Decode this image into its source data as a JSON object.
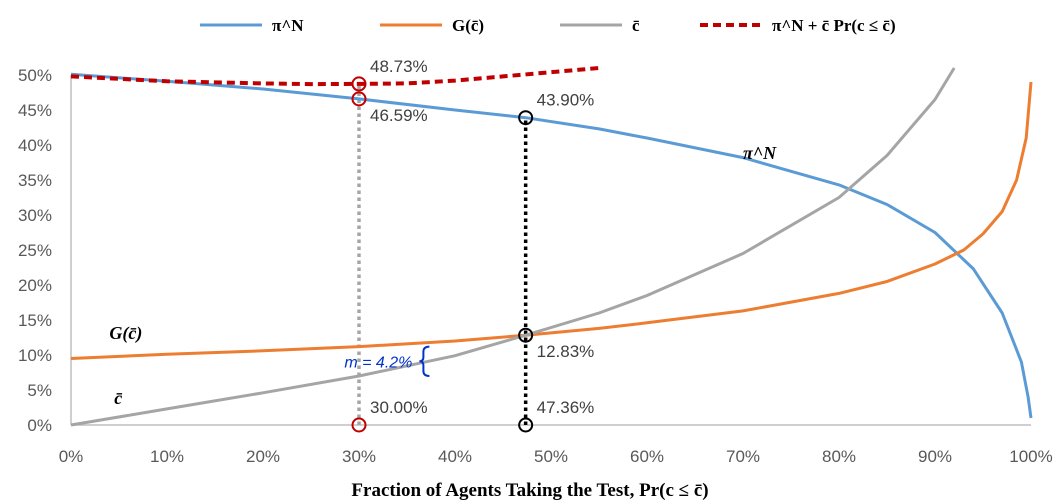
{
  "chart_data": {
    "type": "line",
    "title": "",
    "xlabel": "Fraction of Agents Taking the Test, Pr(c ≤ c̄)",
    "ylabel": "",
    "xlim": [
      0,
      100
    ],
    "ylim": [
      0,
      50
    ],
    "x_ticks": [
      "0%",
      "10%",
      "20%",
      "30%",
      "40%",
      "50%",
      "60%",
      "70%",
      "80%",
      "90%",
      "100%"
    ],
    "y_ticks": [
      "0%",
      "5%",
      "10%",
      "15%",
      "20%",
      "25%",
      "30%",
      "35%",
      "40%",
      "45%",
      "50%"
    ],
    "legend_position": "top",
    "legend": [
      {
        "label": "π^N",
        "color": "#5b9bd5",
        "style": "solid"
      },
      {
        "label": "G(c̄)",
        "color": "#ed7d31",
        "style": "solid"
      },
      {
        "label": "c̄",
        "color": "#a5a5a5",
        "style": "solid"
      },
      {
        "label": "π^N + c̄ Pr(c ≤ c̄)",
        "color": "#c00000",
        "style": "dashed"
      }
    ],
    "series": [
      {
        "name": "π^N",
        "color": "#5b9bd5",
        "style": "solid",
        "x": [
          0,
          10,
          20,
          30,
          40,
          47.36,
          55,
          60,
          70,
          80,
          85,
          90,
          94,
          97,
          99,
          99.7,
          100
        ],
        "y": [
          50.1,
          49.1,
          48.0,
          46.59,
          45.0,
          43.9,
          42.3,
          41.0,
          38.2,
          34.3,
          31.5,
          27.5,
          22.3,
          16.0,
          9.0,
          4.0,
          1.0
        ]
      },
      {
        "name": "G(c̄)",
        "color": "#ed7d31",
        "style": "solid",
        "x": [
          0,
          10,
          20,
          30,
          40,
          47.36,
          55,
          60,
          70,
          80,
          85,
          90,
          93,
          95,
          97,
          98.5,
          99.5,
          100
        ],
        "y": [
          9.5,
          10.1,
          10.6,
          11.2,
          12.0,
          12.83,
          13.8,
          14.6,
          16.3,
          18.8,
          20.5,
          23.0,
          25.0,
          27.3,
          30.5,
          35.0,
          41.0,
          49.0
        ]
      },
      {
        "name": "c̄",
        "color": "#a5a5a5",
        "style": "solid",
        "x": [
          0,
          10,
          20,
          30,
          40,
          47.36,
          55,
          60,
          70,
          80,
          85,
          90,
          92
        ],
        "y": [
          0,
          2.3,
          4.6,
          7.0,
          9.9,
          12.83,
          16.0,
          18.5,
          24.5,
          32.5,
          38.5,
          46.5,
          51.0
        ]
      },
      {
        "name": "π^N + c̄ Pr(c ≤ c̄)",
        "color": "#c00000",
        "style": "dashed",
        "x": [
          0,
          10,
          20,
          25,
          30,
          35,
          40,
          45,
          50,
          55
        ],
        "y": [
          49.8,
          49.1,
          48.8,
          48.7,
          48.73,
          48.8,
          49.2,
          49.8,
          50.4,
          51.0
        ]
      }
    ],
    "vertical_guides": [
      {
        "x": 30,
        "y_top": 48.73,
        "color": "#a5a5a5"
      },
      {
        "x": 47.36,
        "y_top": 43.9,
        "color": "#000000"
      }
    ],
    "markers": [
      {
        "x": 30,
        "y": 48.73,
        "color": "#c00000"
      },
      {
        "x": 30,
        "y": 46.59,
        "color": "#c00000"
      },
      {
        "x": 30,
        "y": 0,
        "color": "#c00000"
      },
      {
        "x": 47.36,
        "y": 43.9,
        "color": "#000000"
      },
      {
        "x": 47.36,
        "y": 12.83,
        "color": "#000000"
      },
      {
        "x": 47.36,
        "y": 0,
        "color": "#000000"
      }
    ],
    "data_labels": [
      {
        "text": "48.73%",
        "x": 30,
        "y": 48.73,
        "anchor": "upper-right"
      },
      {
        "text": "46.59%",
        "x": 30,
        "y": 46.59,
        "anchor": "lower-right"
      },
      {
        "text": "43.90%",
        "x": 47.36,
        "y": 43.9,
        "anchor": "upper-right"
      },
      {
        "text": "12.83%",
        "x": 47.36,
        "y": 12.83,
        "anchor": "lower-right"
      },
      {
        "text": "30.00%",
        "x": 30,
        "y": 0,
        "anchor": "upper-right"
      },
      {
        "text": "47.36%",
        "x": 47.36,
        "y": 0,
        "anchor": "upper-right"
      }
    ],
    "annotations": [
      {
        "text": "π^N",
        "x": 70,
        "y": 38
      },
      {
        "text": "G(c̄)",
        "x": 4,
        "y": 12.3
      },
      {
        "text": "c̄",
        "x": 4.5,
        "y": 3.0
      },
      {
        "text": "m = 4.2%",
        "x": 21.5,
        "y": 9.1,
        "color": "#0033cc"
      }
    ]
  }
}
